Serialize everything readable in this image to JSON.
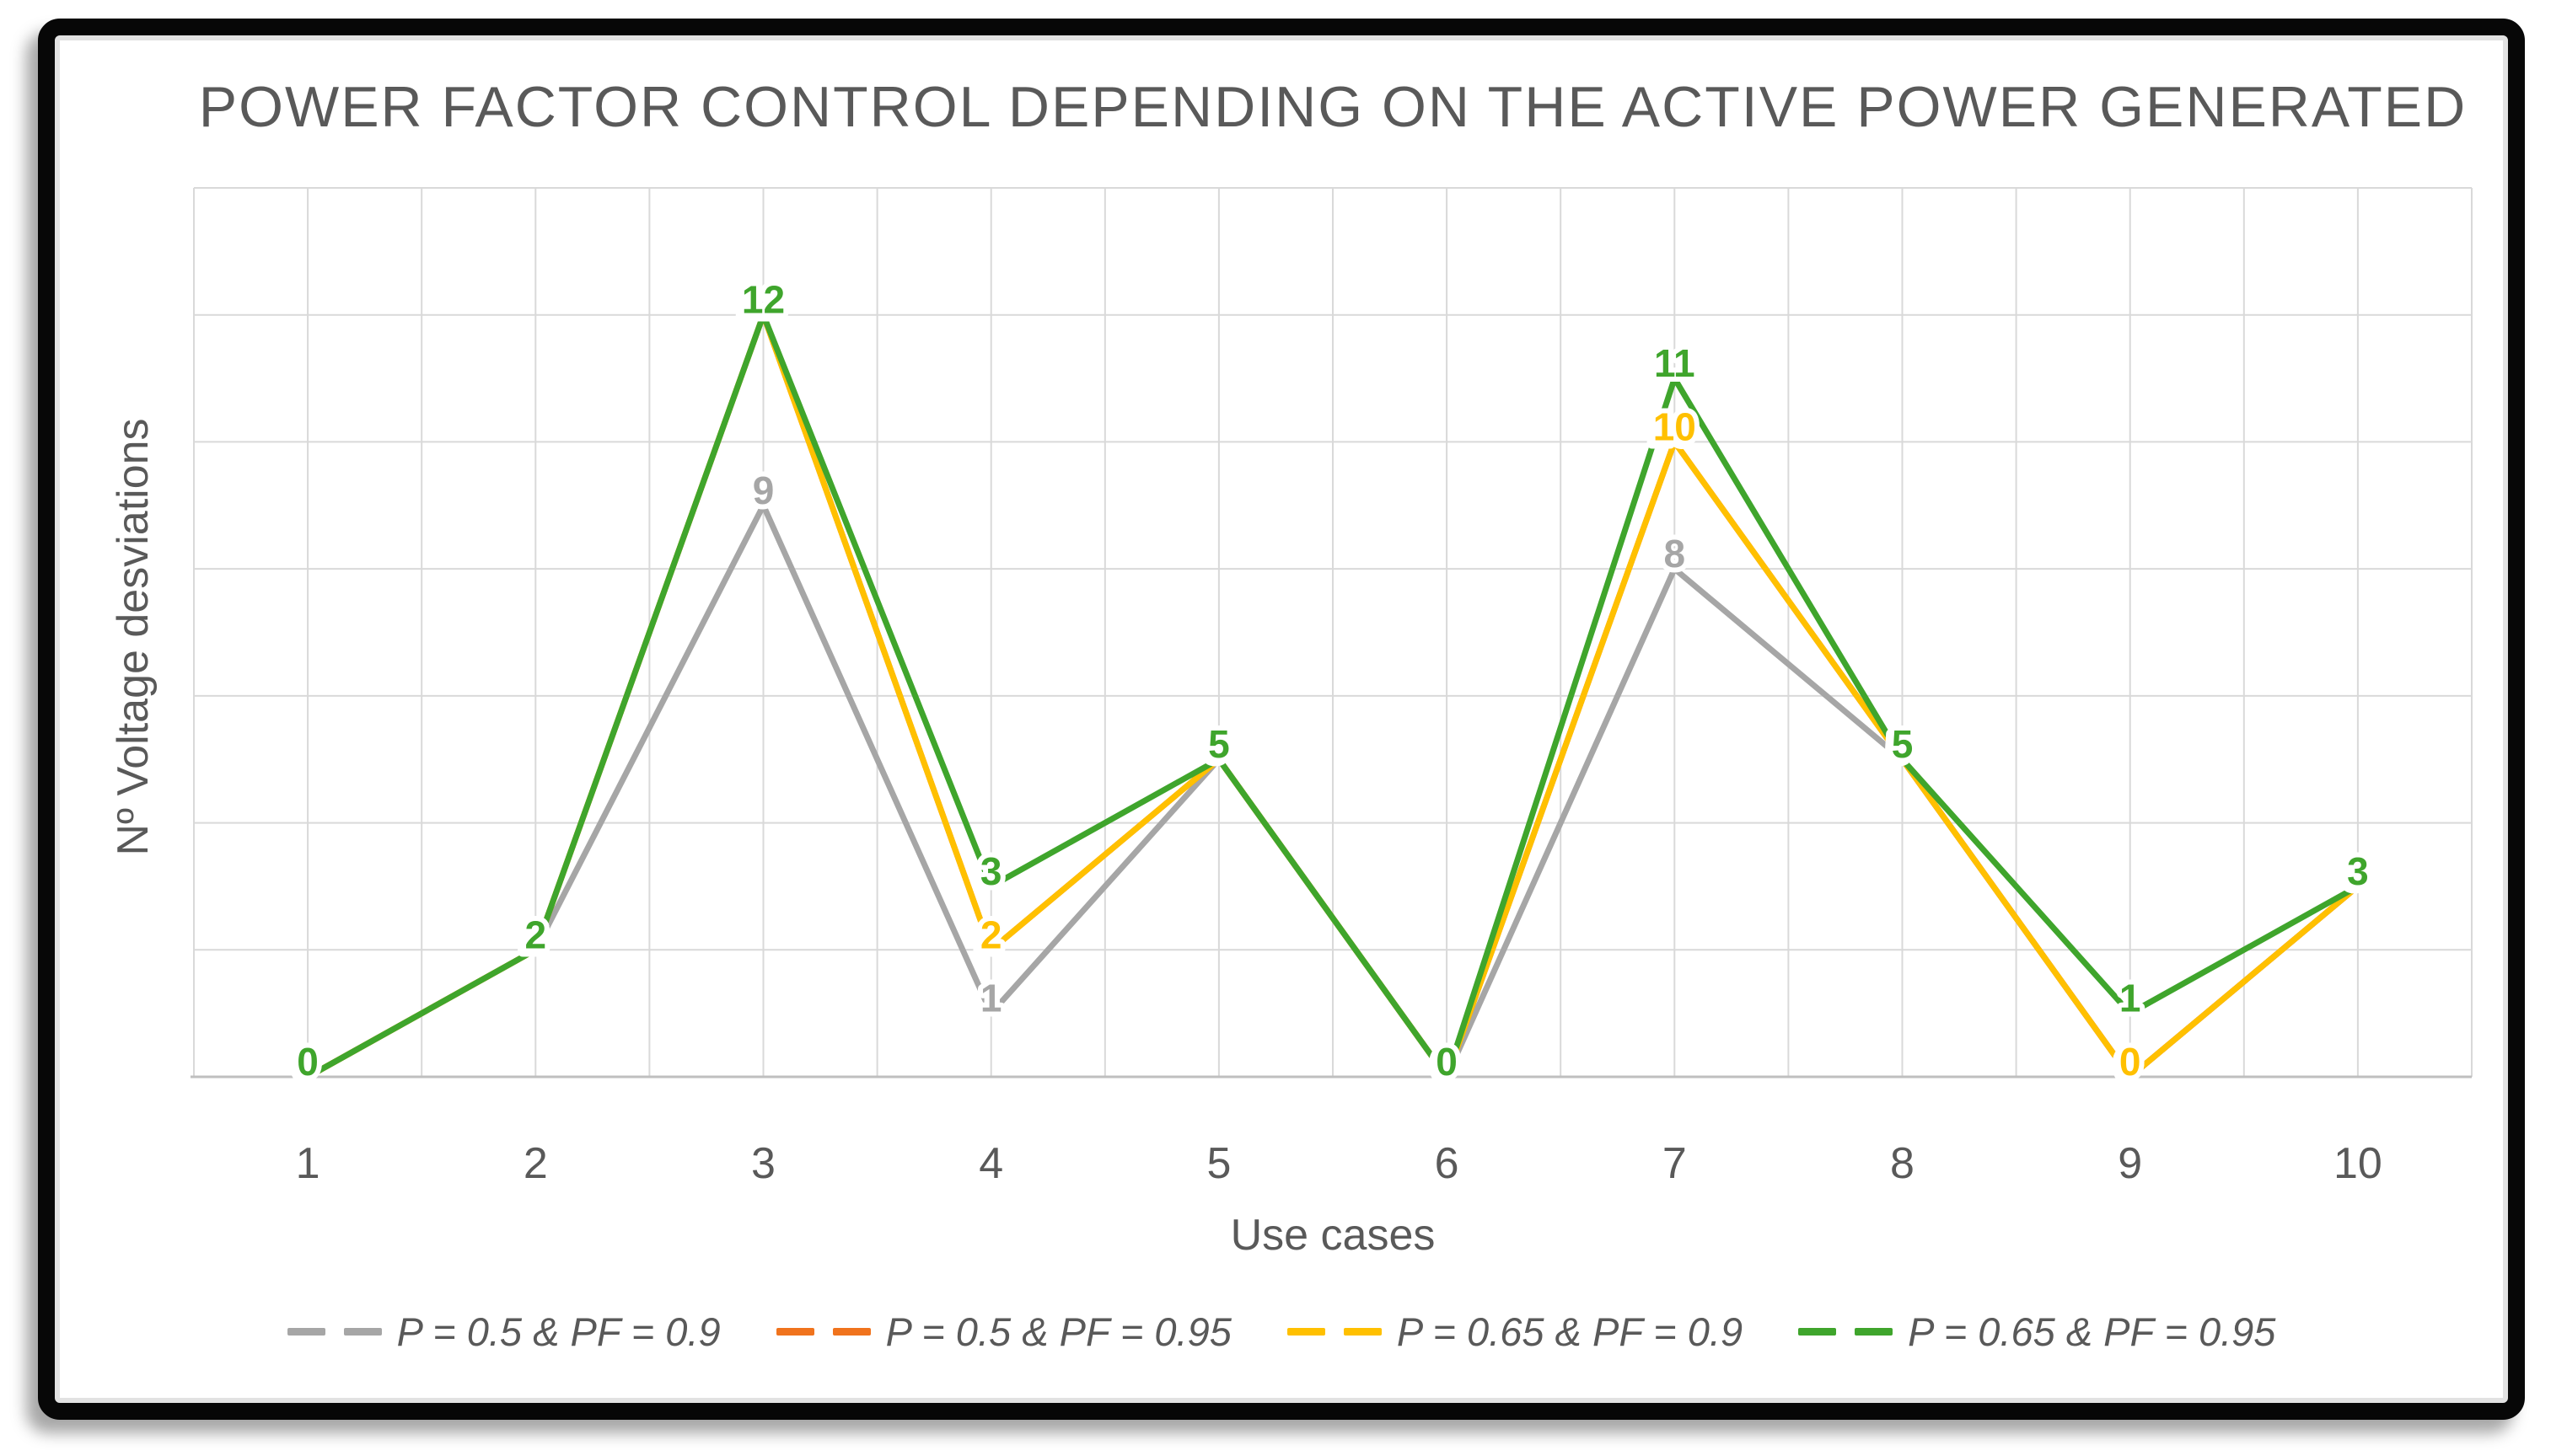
{
  "title": "POWER FACTOR CONTROL DEPENDING ON THE ACTIVE POWER GENERATED",
  "chart_data": {
    "type": "line",
    "title": "POWER FACTOR CONTROL DEPENDING ON THE ACTIVE POWER GENERATED",
    "xlabel": "Use cases",
    "ylabel": "Nº Voltage desviations",
    "categories": [
      "1",
      "2",
      "3",
      "4",
      "5",
      "6",
      "7",
      "8",
      "9",
      "10"
    ],
    "ylim": [
      0,
      14
    ],
    "y_major_unit": 2,
    "x_gridline_count": 21,
    "grid": true,
    "y_tick_labels_shown": false,
    "legend_position": "bottom",
    "line_style_legend": "dashed",
    "series": [
      {
        "name": "P = 0.5 & PF = 0.9",
        "color": "#A6A6A6",
        "values": [
          0,
          2,
          9,
          1,
          5,
          0,
          8,
          5,
          0,
          3
        ]
      },
      {
        "name": "P = 0.5 & PF = 0.95",
        "color": "#F0731D",
        "values": [
          0,
          2,
          12,
          2,
          5,
          0,
          10,
          5,
          0,
          3
        ]
      },
      {
        "name": "P = 0.65 & PF = 0.9",
        "color": "#FFC000",
        "values": [
          0,
          2,
          12,
          2,
          5,
          0,
          10,
          5,
          0,
          3
        ]
      },
      {
        "name": "P = 0.65 & PF = 0.95",
        "color": "#3FA52C",
        "values": [
          0,
          2,
          12,
          3,
          5,
          0,
          11,
          5,
          1,
          3
        ]
      }
    ],
    "data_labels": {
      "visible_values_by_category": [
        "0",
        "2",
        "12 / 9",
        "3 / 2 / 1",
        "5",
        "0",
        "11 / 10 / 8",
        "5",
        "1 / 0",
        "3"
      ]
    }
  },
  "styles": {
    "text_color": "#595959",
    "gridline_color": "#D9D9D9",
    "axis_line_color": "#BFBFBF",
    "frame_color": "#070707",
    "background": "#FFFFFF"
  }
}
